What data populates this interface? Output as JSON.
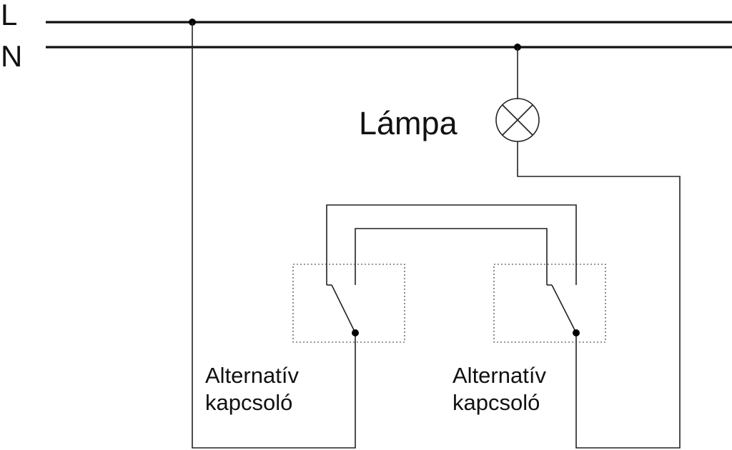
{
  "lines": {
    "live": "L",
    "neutral": "N"
  },
  "lamp": {
    "label": "Lámpa",
    "icon": "lamp-symbol-icon"
  },
  "switches": [
    {
      "line1": "Alternatív",
      "line2": "kapcsoló",
      "icon": "two-way-switch-icon"
    },
    {
      "line1": "Alternatív",
      "line2": "kapcsoló",
      "icon": "two-way-switch-icon"
    }
  ],
  "colors": {
    "wire": "#222222",
    "background": "#ffffff"
  }
}
